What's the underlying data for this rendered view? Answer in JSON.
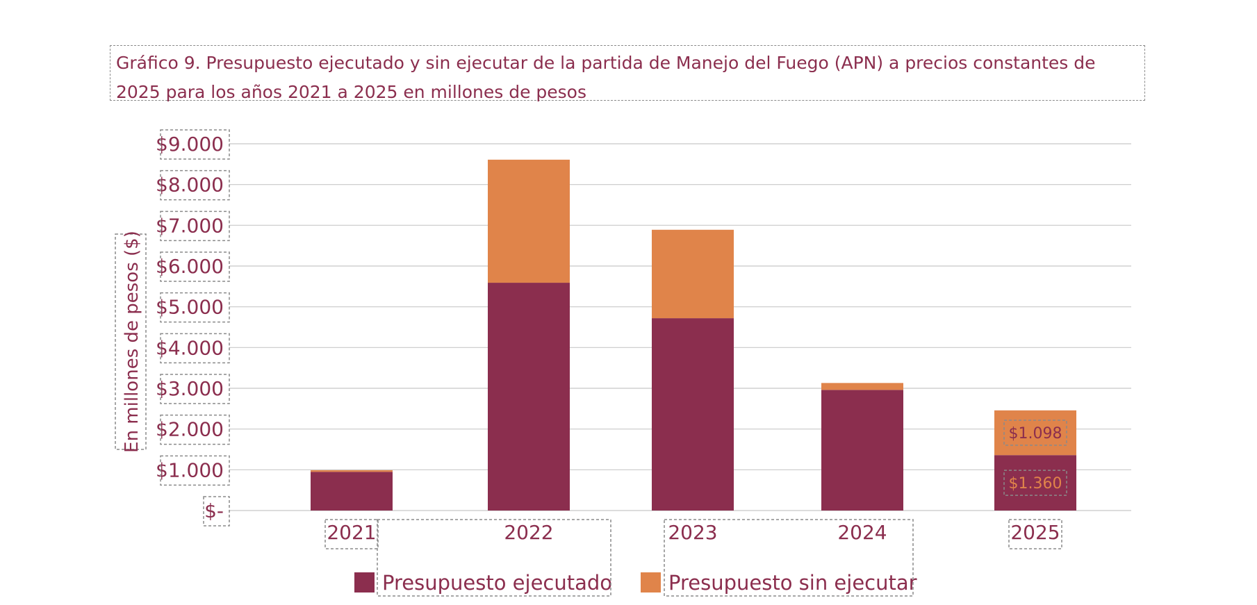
{
  "chart_data": {
    "type": "bar",
    "stacked": true,
    "title": "Gráfico 9. Presupuesto ejecutado y sin ejecutar de la partida de Manejo del Fuego (APN) a precios constantes de 2025 para los años 2021 a 2025 en millones de pesos",
    "ylabel": "En millones de pesos ($)",
    "xlabel": "",
    "categories": [
      "2021",
      "2022",
      "2023",
      "2024",
      "2025"
    ],
    "ylim": [
      0,
      9000
    ],
    "yticks": [
      0,
      1000,
      2000,
      3000,
      4000,
      5000,
      6000,
      7000,
      8000,
      9000
    ],
    "ytick_labels": [
      "$-",
      "$1.000",
      "$2.000",
      "$3.000",
      "$4.000",
      "$5.000",
      "$6.000",
      "$7.000",
      "$8.000",
      "$9.000"
    ],
    "grid": true,
    "legend_position": "bottom",
    "series": [
      {
        "name": "Presupuesto ejecutado",
        "color": "#8b2e4e",
        "values": [
          950,
          5590,
          4720,
          2960,
          1360
        ]
      },
      {
        "name": "Presupuesto sin ejecutar",
        "color": "#e0844a",
        "values": [
          40,
          3020,
          2170,
          170,
          1098
        ]
      }
    ],
    "data_labels": [
      {
        "category": "2025",
        "series": "Presupuesto sin ejecutar",
        "text": "$1.098"
      },
      {
        "category": "2025",
        "series": "Presupuesto ejecutado",
        "text": "$1.360"
      }
    ]
  }
}
